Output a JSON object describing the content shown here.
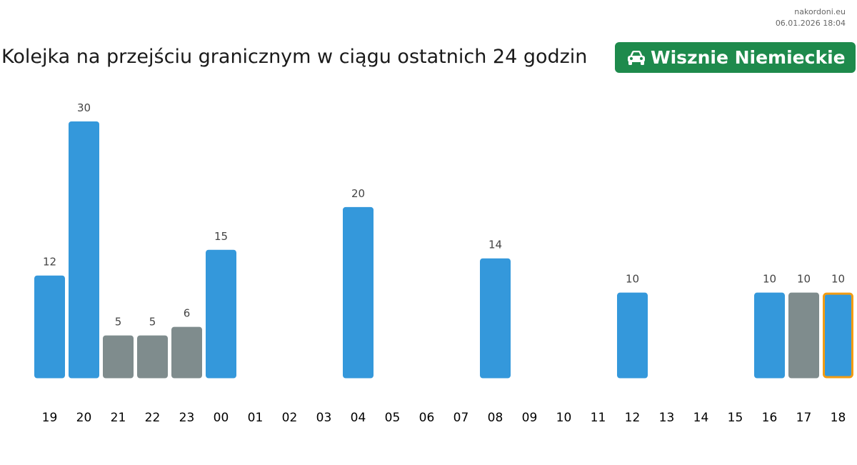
{
  "source": {
    "site": "nakordoni.eu",
    "timestamp": "06.01.2026 18:04"
  },
  "header": {
    "title": "Kolejka na przejściu granicznym w ciągu ostatnich 24 godzin",
    "crossing_name": "Wisznie Niemieckie",
    "crossing_icon": "car-icon",
    "badge_color": "#1e8a4c"
  },
  "chart_data": {
    "type": "bar",
    "title": "Kolejka na przejściu granicznym w ciągu ostatnich 24 godzin",
    "xlabel": "",
    "ylabel": "",
    "categories": [
      "19",
      "20",
      "21",
      "22",
      "23",
      "00",
      "01",
      "02",
      "03",
      "04",
      "05",
      "06",
      "07",
      "08",
      "09",
      "10",
      "11",
      "12",
      "13",
      "14",
      "15",
      "16",
      "17",
      "18"
    ],
    "values": [
      12,
      30,
      5,
      5,
      6,
      15,
      null,
      null,
      null,
      20,
      null,
      null,
      null,
      14,
      null,
      null,
      null,
      10,
      null,
      null,
      null,
      10,
      10,
      10
    ],
    "bar_status": [
      "measured",
      "measured",
      "estimated",
      "estimated",
      "estimated",
      "measured",
      "none",
      "none",
      "none",
      "measured",
      "none",
      "none",
      "none",
      "measured",
      "none",
      "none",
      "none",
      "measured",
      "none",
      "none",
      "none",
      "measured",
      "estimated",
      "measured"
    ],
    "highlighted_category": "18",
    "colors": {
      "measured": "#3498db",
      "estimated": "#7f8c8d",
      "highlight_border": "#f39c12",
      "value_label": "#444444",
      "tick_label": "#000000"
    },
    "ylim": [
      0,
      30
    ],
    "grid": false,
    "legend": "none"
  }
}
